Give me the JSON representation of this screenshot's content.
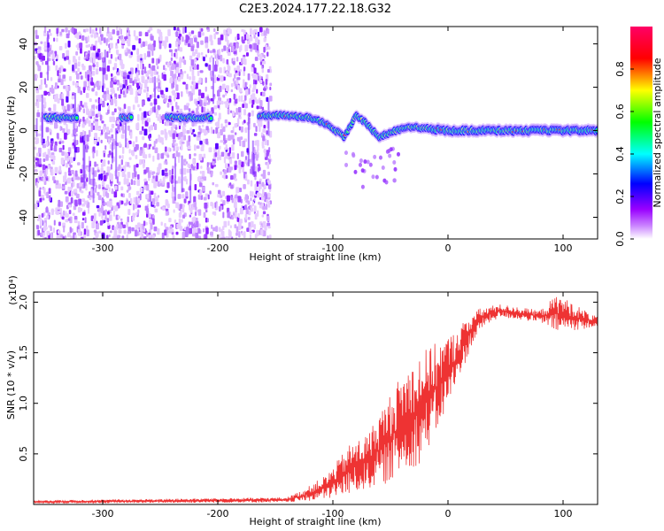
{
  "title": "C2E3.2024.177.22.18.G32",
  "chart_data": [
    {
      "type": "heatmap",
      "xlabel": "Height of straight line (km)",
      "ylabel": "Frequency (Hz)",
      "xlim": [
        -360,
        130
      ],
      "ylim": [
        -50,
        48
      ],
      "xticks": [
        -300,
        -200,
        -100,
        0,
        100
      ],
      "yticks": [
        -40,
        -20,
        0,
        20,
        40
      ],
      "xtick_labels": [
        "-300",
        "-200",
        "-100",
        "0",
        "100"
      ],
      "ytick_labels": [
        "-40",
        "-20",
        "0",
        "20",
        "40"
      ],
      "colorbar": {
        "label": "Normalized spectral amplitude",
        "range": [
          0,
          1
        ],
        "ticks": [
          0.0,
          0.2,
          0.4,
          0.6,
          0.8
        ],
        "tick_labels": [
          "0.0",
          "0.2",
          "0.4",
          "0.6",
          "0.8"
        ],
        "colors": [
          "#ffffff",
          "#9900ff",
          "#0000ff",
          "#00ffff",
          "#00ff00",
          "#ffff00",
          "#ff0000",
          "#ff0066"
        ]
      },
      "noise_region_x": [
        -360,
        -155
      ],
      "ridge": [
        {
          "x": -350,
          "y": 6
        },
        {
          "x": -330,
          "y": 6
        },
        {
          "x": -280,
          "y": 6
        },
        {
          "x": -240,
          "y": 6
        },
        {
          "x": -210,
          "y": 6
        },
        {
          "x": -160,
          "y": 7
        },
        {
          "x": -140,
          "y": 7
        },
        {
          "x": -120,
          "y": 6
        },
        {
          "x": -105,
          "y": 3
        },
        {
          "x": -90,
          "y": -3
        },
        {
          "x": -80,
          "y": 7
        },
        {
          "x": -70,
          "y": 3
        },
        {
          "x": -60,
          "y": -3
        },
        {
          "x": -45,
          "y": 0
        },
        {
          "x": -30,
          "y": 2
        },
        {
          "x": -20,
          "y": 1
        },
        {
          "x": 0,
          "y": 0
        },
        {
          "x": 50,
          "y": 0
        },
        {
          "x": 100,
          "y": 0
        },
        {
          "x": 130,
          "y": 0
        }
      ]
    },
    {
      "type": "line",
      "xlabel": "Height of straight line (km)",
      "ylabel": "SNR (10 * v/v)",
      "yscale_note": "(x10⁴)",
      "xlim": [
        -360,
        130
      ],
      "ylim": [
        0,
        2.1
      ],
      "xticks": [
        -300,
        -200,
        -100,
        0,
        100
      ],
      "yticks": [
        0.5,
        1.0,
        1.5,
        2.0
      ],
      "xtick_labels": [
        "-300",
        "-200",
        "-100",
        "0",
        "100"
      ],
      "ytick_labels": [
        "0.5",
        "1.0",
        "1.5",
        "2.0"
      ],
      "series": [
        {
          "color": "#ee3333",
          "envelope": [
            {
              "x": -360,
              "lo": 0.01,
              "hi": 0.04
            },
            {
              "x": -140,
              "lo": 0.02,
              "hi": 0.07
            },
            {
              "x": -125,
              "lo": 0.03,
              "hi": 0.15
            },
            {
              "x": -105,
              "lo": 0.05,
              "hi": 0.3
            },
            {
              "x": -85,
              "lo": 0.1,
              "hi": 0.6
            },
            {
              "x": -70,
              "lo": 0.15,
              "hi": 0.7
            },
            {
              "x": -55,
              "lo": 0.2,
              "hi": 1.0
            },
            {
              "x": -40,
              "lo": 0.3,
              "hi": 1.3
            },
            {
              "x": -25,
              "lo": 0.4,
              "hi": 1.5
            },
            {
              "x": -10,
              "lo": 0.7,
              "hi": 1.6
            },
            {
              "x": 5,
              "lo": 1.1,
              "hi": 1.7
            },
            {
              "x": 20,
              "lo": 1.55,
              "hi": 1.9
            },
            {
              "x": 30,
              "lo": 1.75,
              "hi": 1.95
            },
            {
              "x": 45,
              "lo": 1.85,
              "hi": 1.98
            },
            {
              "x": 80,
              "lo": 1.8,
              "hi": 1.92
            },
            {
              "x": 95,
              "lo": 1.7,
              "hi": 2.08
            },
            {
              "x": 130,
              "lo": 1.75,
              "hi": 1.85
            }
          ]
        }
      ]
    }
  ]
}
